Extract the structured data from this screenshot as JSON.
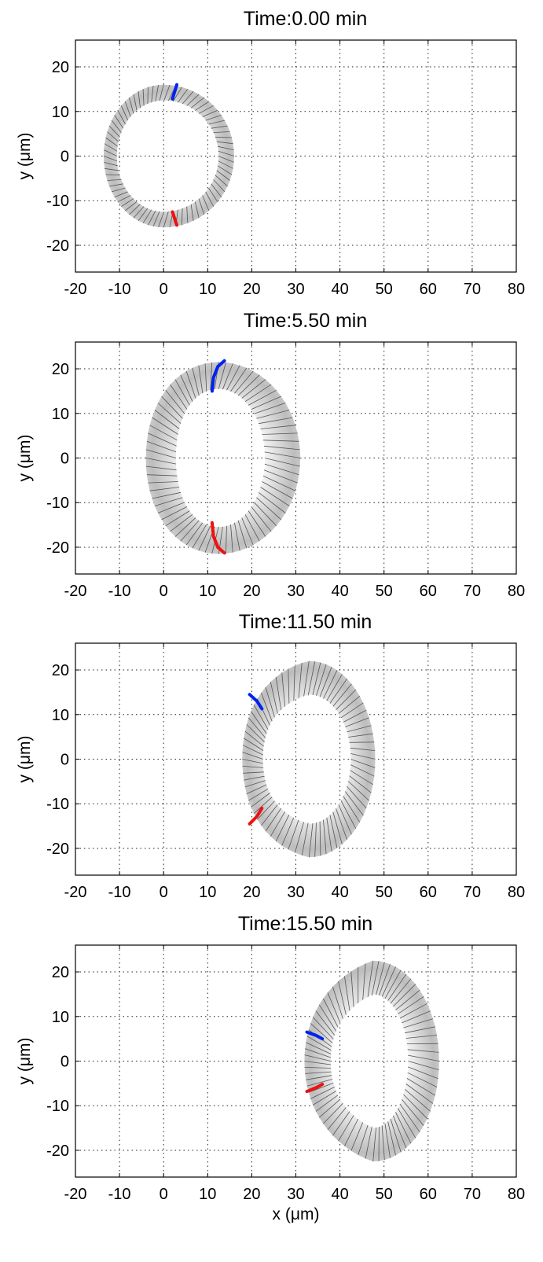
{
  "chart_data": [
    {
      "type": "scatter",
      "title": "Time:0.00 min",
      "ylabel": "y (μm)",
      "xlabel": "",
      "xlim": [
        -20,
        80
      ],
      "ylim": [
        -26,
        26
      ],
      "xticks": [
        "-20",
        "-10",
        "0",
        "10",
        "20",
        "30",
        "40",
        "50",
        "60",
        "70",
        "80"
      ],
      "yticks": [
        "20",
        "10",
        "0",
        "-10",
        "-20"
      ],
      "grid": true,
      "cell": {
        "center": [
          0,
          0
        ],
        "outer_rx": 16,
        "outer_ry": 16,
        "inner_rx": 12.5,
        "inner_ry": 12.5,
        "nose": 0,
        "left_outer_ry": 16,
        "left_inner_ry": 12.5
      },
      "markers": [
        {
          "color": "#0022ee",
          "points": [
            [
              2,
              12.8
            ],
            [
              3,
              16
            ]
          ]
        },
        {
          "color": "#ee1111",
          "points": [
            [
              2,
              -12.5
            ],
            [
              3,
              -15.5
            ]
          ]
        }
      ]
    },
    {
      "type": "scatter",
      "title": "Time:5.50 min",
      "ylabel": "y (μm)",
      "xlabel": "",
      "xlim": [
        -20,
        80
      ],
      "ylim": [
        -26,
        26
      ],
      "xticks": [
        "-20",
        "-10",
        "0",
        "10",
        "20",
        "30",
        "40",
        "50",
        "60",
        "70",
        "80"
      ],
      "yticks": [
        "20",
        "10",
        "0",
        "-10",
        "-20"
      ],
      "grid": true,
      "cell": {
        "center": [
          12.5,
          0
        ],
        "outer_rx": 18.5,
        "outer_ry": 21.5,
        "inner_rx": 10.5,
        "inner_ry": 15.5,
        "nose": 2,
        "left_outer_ry": 21.5,
        "left_inner_ry": 15.5
      },
      "markers": [
        {
          "color": "#0022ee",
          "points": [
            [
              11,
              15
            ],
            [
              11.3,
              18
            ],
            [
              12.3,
              20.5
            ],
            [
              13.8,
              21.8
            ]
          ]
        },
        {
          "color": "#ee1111",
          "points": [
            [
              11,
              -14.5
            ],
            [
              11.3,
              -17.5
            ],
            [
              12.3,
              -20
            ],
            [
              13.8,
              -21.3
            ]
          ]
        }
      ]
    },
    {
      "type": "scatter",
      "title": "Time:11.50 min",
      "ylabel": "y (μm)",
      "xlabel": "",
      "xlim": [
        -20,
        80
      ],
      "ylim": [
        -26,
        26
      ],
      "xticks": [
        "-20",
        "-10",
        "0",
        "10",
        "20",
        "30",
        "40",
        "50",
        "60",
        "70",
        "80"
      ],
      "yticks": [
        "20",
        "10",
        "0",
        "-10",
        "-20"
      ],
      "grid": true,
      "cell": {
        "center": [
          33,
          0
        ],
        "outer_rx": 15,
        "outer_ry": 22,
        "inner_rx": 9.5,
        "inner_ry": 14.5,
        "nose": 6,
        "left_outer_ry": 18,
        "left_inner_ry": 11
      },
      "markers": [
        {
          "color": "#0022ee",
          "points": [
            [
              19.5,
              14.5
            ],
            [
              21.2,
              13
            ],
            [
              22.3,
              11.3
            ]
          ]
        },
        {
          "color": "#ee1111",
          "points": [
            [
              19.5,
              -14.5
            ],
            [
              21.2,
              -12.8
            ],
            [
              22.3,
              -11
            ]
          ]
        }
      ]
    },
    {
      "type": "scatter",
      "title": "Time:15.50 min",
      "ylabel": "y (μm)",
      "xlabel": "x (μm)",
      "xlim": [
        -20,
        80
      ],
      "ylim": [
        -26,
        26
      ],
      "xticks": [
        "-20",
        "-10",
        "0",
        "10",
        "20",
        "30",
        "40",
        "50",
        "60",
        "70",
        "80"
      ],
      "yticks": [
        "20",
        "10",
        "0",
        "-10",
        "-20"
      ],
      "grid": true,
      "cell": {
        "center": [
          47.5,
          0
        ],
        "outer_rx": 15,
        "outer_ry": 22.5,
        "inner_rx": 8,
        "inner_ry": 15,
        "nose": 7,
        "left_outer_ry": 16,
        "left_inner_ry": 9
      },
      "markers": [
        {
          "color": "#0022ee",
          "points": [
            [
              32.5,
              6.5
            ],
            [
              34.5,
              5.8
            ],
            [
              36,
              5
            ]
          ]
        },
        {
          "color": "#ee1111",
          "points": [
            [
              32.5,
              -6.8
            ],
            [
              34.5,
              -6
            ],
            [
              36,
              -5.2
            ]
          ]
        }
      ]
    }
  ]
}
